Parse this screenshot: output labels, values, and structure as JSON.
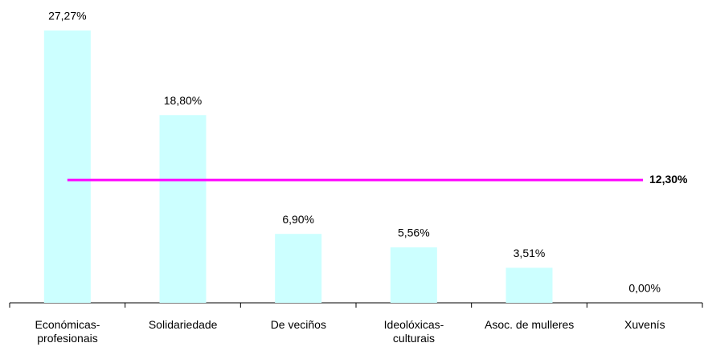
{
  "chart_data": {
    "type": "bar",
    "categories": [
      "Económicas-\nprofesionais",
      "Solidariedade",
      "De veciños",
      "Ideolóxicas-\nculturais",
      "Asoc. de mulleres",
      "Xuvenís"
    ],
    "values": [
      27.27,
      18.8,
      6.9,
      5.56,
      3.51,
      0.0
    ],
    "value_labels": [
      "27,27%",
      "18,80%",
      "6,90%",
      "5,56%",
      "3,51%",
      "0,00%"
    ],
    "color": "#ccffff",
    "ylim": [
      0,
      30
    ],
    "reference_line": {
      "value": 12.3,
      "label": "12,30%",
      "color": "#ff00ff"
    }
  }
}
